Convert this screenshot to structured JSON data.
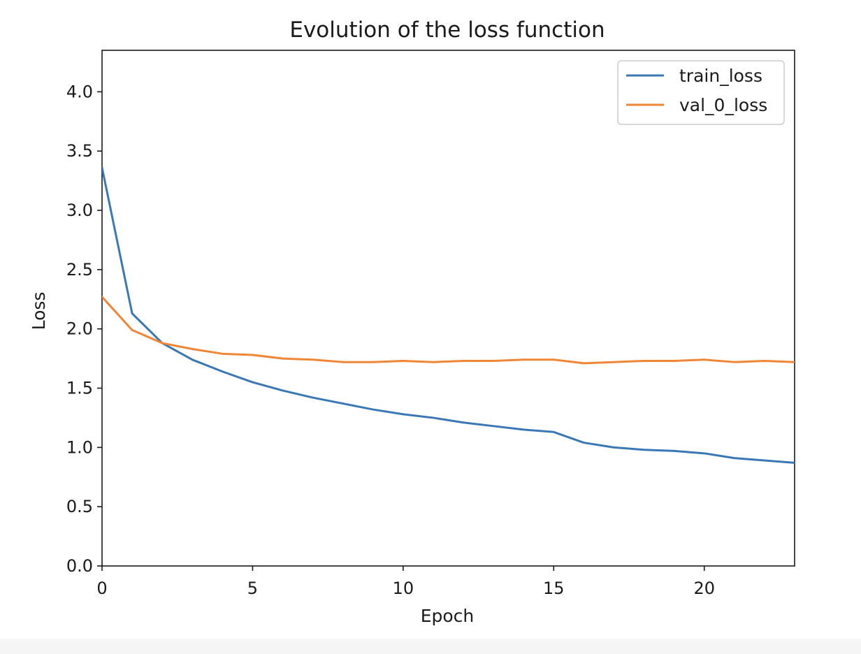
{
  "chart_data": {
    "type": "line",
    "title": "Evolution of the loss function",
    "xlabel": "Epoch",
    "ylabel": "Loss",
    "xlim": [
      0,
      23
    ],
    "ylim": [
      0,
      4.35
    ],
    "xticks": [
      0,
      5,
      10,
      15,
      20
    ],
    "xtick_labels": [
      "0",
      "5",
      "10",
      "15",
      "20"
    ],
    "yticks": [
      0,
      0.5,
      1.0,
      1.5,
      2.0,
      2.5,
      3.0,
      3.5,
      4.0
    ],
    "ytick_labels": [
      "0.0",
      "0.5",
      "1.0",
      "1.5",
      "2.0",
      "2.5",
      "3.0",
      "3.5",
      "4.0"
    ],
    "grid": false,
    "legend_position": "top-right",
    "x": [
      0,
      1,
      2,
      3,
      4,
      5,
      6,
      7,
      8,
      9,
      10,
      11,
      12,
      13,
      14,
      15,
      16,
      17,
      18,
      19,
      20,
      21,
      22,
      23
    ],
    "series": [
      {
        "name": "train_loss",
        "color": "#3a78b5",
        "values": [
          3.36,
          2.13,
          1.88,
          1.74,
          1.64,
          1.55,
          1.48,
          1.42,
          1.37,
          1.32,
          1.28,
          1.25,
          1.21,
          1.18,
          1.15,
          1.13,
          1.04,
          1.0,
          0.98,
          0.97,
          0.95,
          0.91,
          0.89,
          0.87
        ]
      },
      {
        "name": "val_0_loss",
        "color": "#ef8636",
        "values": [
          2.27,
          1.99,
          1.88,
          1.83,
          1.79,
          1.78,
          1.75,
          1.74,
          1.72,
          1.72,
          1.73,
          1.72,
          1.73,
          1.73,
          1.74,
          1.74,
          1.71,
          1.72,
          1.73,
          1.73,
          1.74,
          1.72,
          1.73,
          1.72
        ]
      }
    ]
  }
}
